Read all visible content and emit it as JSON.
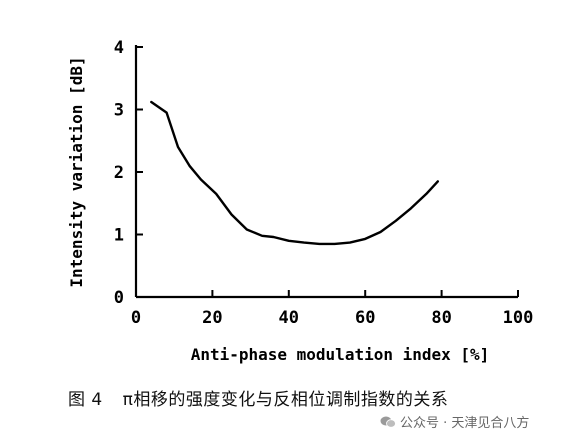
{
  "chart_data": {
    "type": "line",
    "title": "",
    "xlabel": "Anti-phase modulation index [%]",
    "ylabel": "Intensity variation [dB]",
    "xlim": [
      0,
      100
    ],
    "ylim": [
      0,
      4
    ],
    "xticks": [
      0,
      20,
      40,
      60,
      80,
      100
    ],
    "yticks": [
      0,
      1,
      2,
      3,
      4
    ],
    "grid": false,
    "series": [
      {
        "x": [
          4,
          8,
          11,
          14,
          17,
          21,
          25,
          29,
          33,
          36,
          40,
          44,
          48,
          52,
          56,
          60,
          64,
          68,
          72,
          76,
          79
        ],
        "y": [
          3.12,
          2.95,
          2.4,
          2.1,
          1.88,
          1.65,
          1.32,
          1.08,
          0.98,
          0.96,
          0.9,
          0.87,
          0.85,
          0.85,
          0.87,
          0.93,
          1.04,
          1.22,
          1.42,
          1.65,
          1.85
        ]
      }
    ]
  },
  "caption": {
    "label": "图 4",
    "text": "π相移的强度变化与反相位调制指数的关系"
  },
  "watermark": {
    "text": "公众号 · 天津见合八方",
    "icon": "wechat-icon"
  }
}
